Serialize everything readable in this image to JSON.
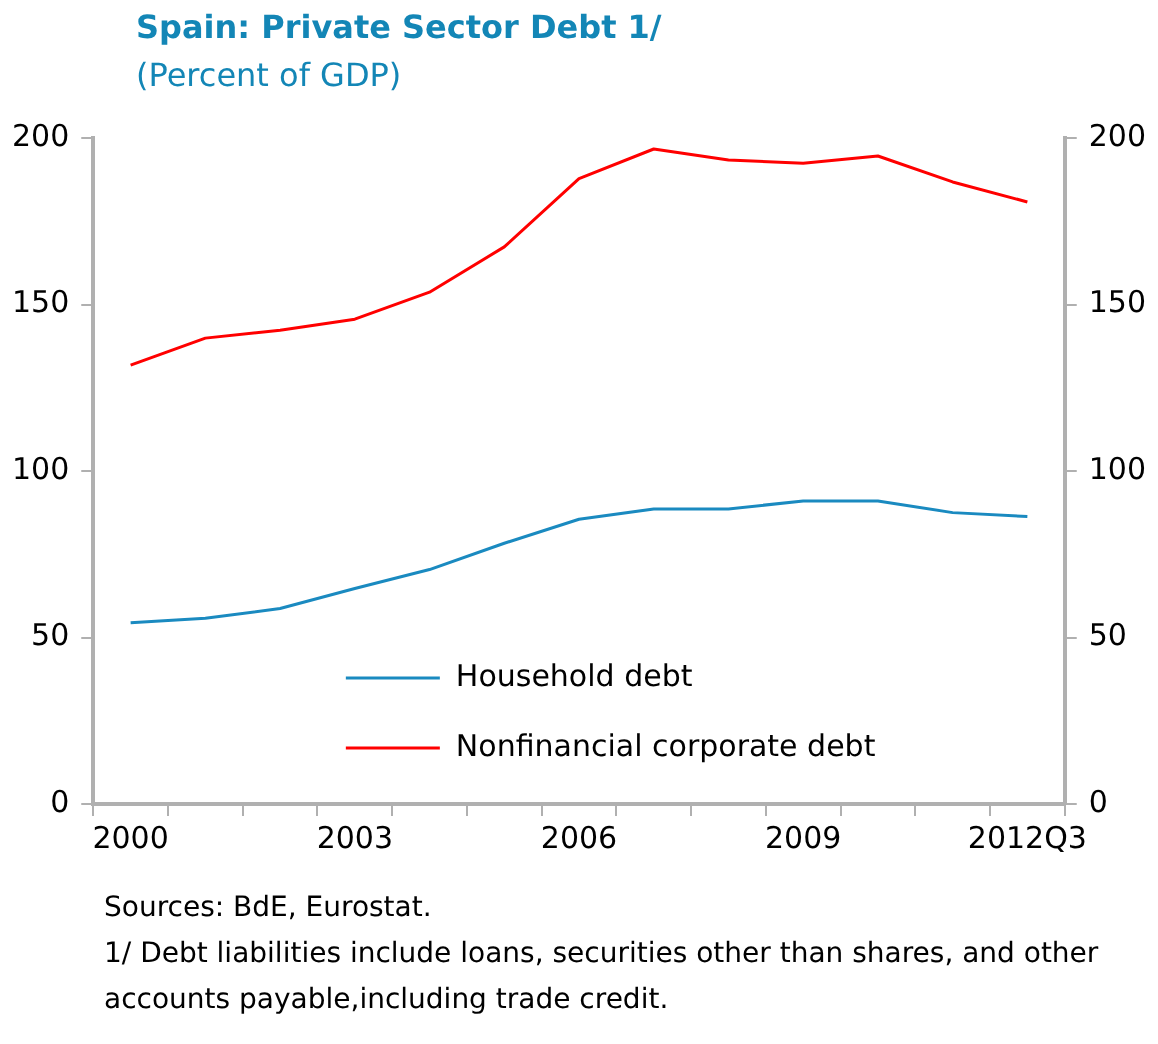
{
  "chart_data": {
    "type": "line",
    "title": "Spain: Private Sector Debt  1/",
    "subtitle": "(Percent of GDP)",
    "categories": [
      "2000",
      null,
      null,
      "2003",
      null,
      null,
      "2006",
      null,
      null,
      "2009",
      null,
      null,
      "2012Q3"
    ],
    "series": [
      {
        "name": "Household debt",
        "color": "#1a8ac0",
        "values": [
          54.4,
          55.8,
          58.7,
          64.7,
          70.4,
          78.3,
          85.5,
          88.6,
          88.6,
          91.0,
          91.0,
          87.5,
          86.3
        ]
      },
      {
        "name": "Nonfinancial corporate debt",
        "color": "#ff0000",
        "values": [
          131.8,
          139.9,
          142.3,
          145.6,
          153.7,
          167.3,
          187.8,
          196.7,
          193.4,
          192.4,
          194.6,
          186.8,
          180.8
        ]
      }
    ],
    "ylim": [
      0,
      200
    ],
    "yticks": [
      0,
      50,
      100,
      150,
      200
    ],
    "y2lim": [
      0,
      200
    ],
    "y2ticks": [
      0,
      50,
      100,
      150,
      200
    ],
    "grid": false,
    "legend": "bottom right",
    "marker": "none",
    "line_style": "solid",
    "annotations": [
      "Sources: BdE, Eurostat.",
      "1/ Debt liabilities include loans, securities other than shares, and other accounts payable,including trade credit."
    ]
  }
}
